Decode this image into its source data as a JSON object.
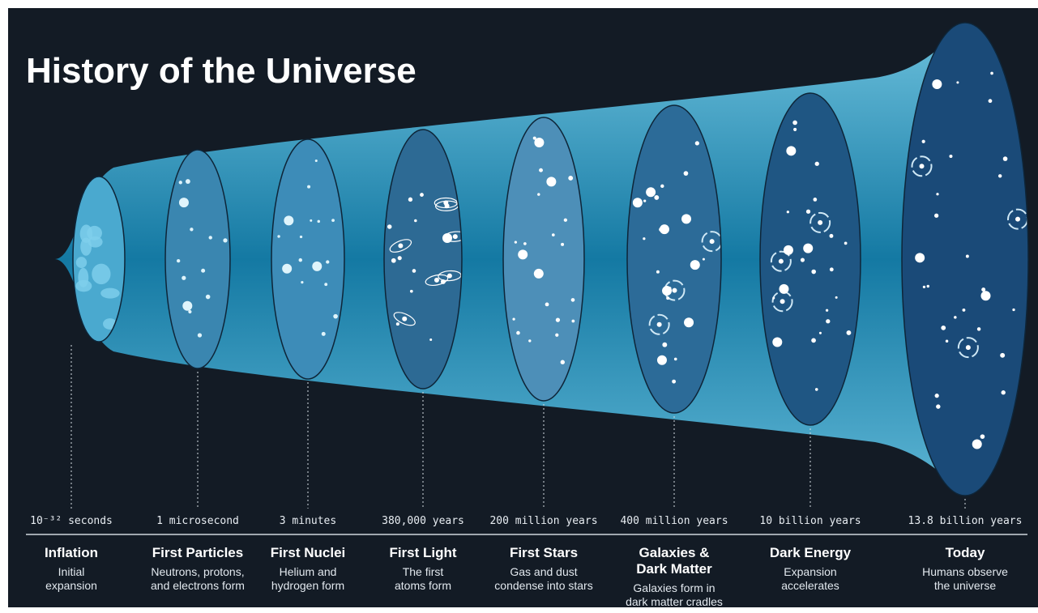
{
  "title": "History of the Universe",
  "stages": [
    {
      "time": "10⁻³² seconds",
      "name": [
        "Inflation"
      ],
      "description": [
        "Initial",
        "expansion"
      ]
    },
    {
      "time": "1 microsecond",
      "name": [
        "First Particles"
      ],
      "description": [
        "Neutrons, protons,",
        "and electrons form"
      ]
    },
    {
      "time": "3 minutes",
      "name": [
        "First Nuclei"
      ],
      "description": [
        "Helium and",
        "hydrogen form"
      ]
    },
    {
      "time": "380,000 years",
      "name": [
        "First Light"
      ],
      "description": [
        "The first",
        "atoms form"
      ]
    },
    {
      "time": "200 million years",
      "name": [
        "First Stars"
      ],
      "description": [
        "Gas and dust",
        "condense into stars"
      ]
    },
    {
      "time": "400 million years",
      "name": [
        "Galaxies &",
        "Dark Matter"
      ],
      "description": [
        "Galaxies form in",
        "dark matter cradles"
      ]
    },
    {
      "time": "10 billion years",
      "name": [
        "Dark Energy"
      ],
      "description": [
        "Expansion",
        "accelerates"
      ]
    },
    {
      "time": "13.8 billion years",
      "name": [
        "Today"
      ],
      "description": [
        "Humans observe",
        "the universe"
      ]
    }
  ]
}
